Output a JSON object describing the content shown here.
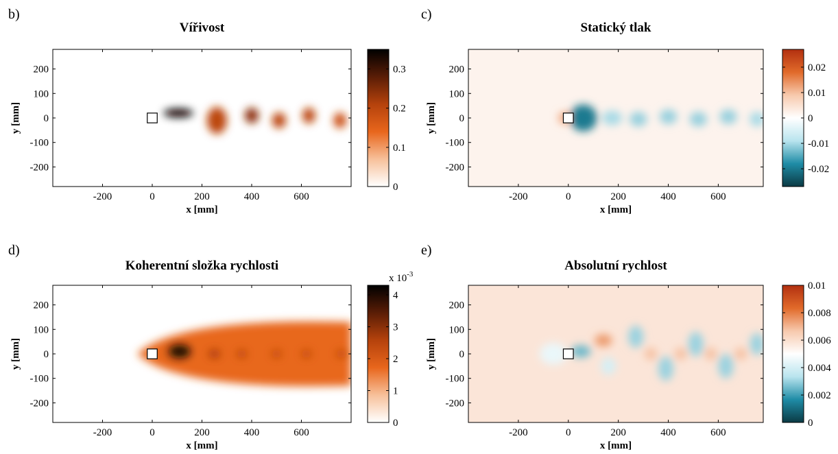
{
  "chart_data": [
    {
      "type": "heatmap",
      "panel_letter": "b)",
      "title": "Vířivost",
      "xlabel": "x [mm]",
      "ylabel": "y [mm]",
      "xlim": [
        -400,
        800
      ],
      "ylim": [
        -280,
        280
      ],
      "xticks": [
        -200,
        0,
        200,
        400,
        600
      ],
      "xtick_labels": [
        "-200",
        "0",
        "200",
        "400",
        "600"
      ],
      "yticks": [
        200,
        100,
        0,
        -100,
        -200
      ],
      "ytick_labels": [
        "200",
        "100",
        "0",
        "-100",
        "-200"
      ],
      "colorbar": {
        "range": [
          0,
          0.35
        ],
        "ticks": [
          0.3,
          0.2,
          0.1,
          0
        ],
        "tick_labels": [
          "0.3",
          "0.2",
          "0.1",
          "0"
        ],
        "exponent_label": "",
        "colormap": [
          "#ffffff",
          "#f7c09a",
          "#e8661c",
          "#b5420c",
          "#5a1d06",
          "#000000"
        ]
      },
      "field": "vorticity",
      "obstacle": {
        "x": 0,
        "y": 0,
        "size": 40
      },
      "features": [
        {
          "x": 105,
          "y": 20,
          "rx": 60,
          "ry": 18,
          "value": 0.34
        },
        {
          "x": 260,
          "y": -10,
          "rx": 40,
          "ry": 55,
          "value": 0.2
        },
        {
          "x": 400,
          "y": 10,
          "rx": 28,
          "ry": 32,
          "value": 0.24
        },
        {
          "x": 510,
          "y": -10,
          "rx": 28,
          "ry": 32,
          "value": 0.2
        },
        {
          "x": 630,
          "y": 10,
          "rx": 26,
          "ry": 32,
          "value": 0.2
        },
        {
          "x": 755,
          "y": -10,
          "rx": 26,
          "ry": 32,
          "value": 0.18
        }
      ]
    },
    {
      "type": "heatmap",
      "panel_letter": "c)",
      "title": "Statický tlak",
      "xlabel": "x [mm]",
      "ylabel": "y [mm]",
      "xlim": [
        -400,
        780
      ],
      "ylim": [
        -280,
        280
      ],
      "xticks": [
        -200,
        0,
        200,
        400,
        600
      ],
      "xtick_labels": [
        "-200",
        "0",
        "200",
        "400",
        "600"
      ],
      "yticks": [
        200,
        100,
        0,
        -100,
        -200
      ],
      "ytick_labels": [
        "200",
        "100",
        "0",
        "-100",
        "-200"
      ],
      "colorbar": {
        "range": [
          -0.027,
          0.027
        ],
        "ticks": [
          0.02,
          0.01,
          0,
          -0.01,
          -0.02
        ],
        "tick_labels": [
          "0.02",
          "0.01",
          "0",
          "-0.01",
          "-0.02"
        ],
        "exponent_label": "",
        "colormap": [
          "#0b3a44",
          "#1f8ca6",
          "#b9e4ee",
          "#ffffff",
          "#f7c9ad",
          "#e16a2a",
          "#b23010"
        ]
      },
      "field": "pressure",
      "obstacle": {
        "x": 0,
        "y": 0,
        "size": 40
      },
      "features": [
        {
          "x": -15,
          "y": 0,
          "rx": 25,
          "ry": 25,
          "value": 0.012
        },
        {
          "x": 60,
          "y": 0,
          "rx": 55,
          "ry": 55,
          "value": -0.02
        },
        {
          "x": 175,
          "y": 0,
          "rx": 40,
          "ry": 30,
          "value": -0.01
        },
        {
          "x": 280,
          "y": -5,
          "rx": 35,
          "ry": 30,
          "value": -0.011
        },
        {
          "x": 400,
          "y": 5,
          "rx": 35,
          "ry": 30,
          "value": -0.011
        },
        {
          "x": 520,
          "y": -5,
          "rx": 35,
          "ry": 30,
          "value": -0.011
        },
        {
          "x": 640,
          "y": 5,
          "rx": 35,
          "ry": 30,
          "value": -0.011
        },
        {
          "x": 755,
          "y": -5,
          "rx": 30,
          "ry": 30,
          "value": -0.01
        }
      ]
    },
    {
      "type": "heatmap",
      "panel_letter": "d)",
      "title": "Koherentní složka rychlosti",
      "xlabel": "x [mm]",
      "ylabel": "y [mm]",
      "xlim": [
        -400,
        800
      ],
      "ylim": [
        -280,
        280
      ],
      "xticks": [
        -200,
        0,
        200,
        400,
        600
      ],
      "xtick_labels": [
        "-200",
        "0",
        "200",
        "400",
        "600"
      ],
      "yticks": [
        200,
        100,
        0,
        -100,
        -200
      ],
      "ytick_labels": [
        "200",
        "100",
        "0",
        "-100",
        "-200"
      ],
      "colorbar": {
        "range": [
          0,
          4.3
        ],
        "ticks": [
          4,
          3,
          2,
          1,
          0
        ],
        "tick_labels": [
          "4",
          "3",
          "2",
          "1",
          "0"
        ],
        "exponent_label": "x 10",
        "exponent": "-3",
        "colormap": [
          "#ffffff",
          "#f7c09a",
          "#e8661c",
          "#b5420c",
          "#5a1d06",
          "#000000"
        ]
      },
      "field": "coherent_velocity",
      "obstacle": {
        "x": 0,
        "y": 0,
        "size": 40
      },
      "features": [
        {
          "x": 110,
          "y": 10,
          "rx": 45,
          "ry": 28,
          "value": 4.0
        },
        {
          "x": 250,
          "y": 0,
          "rx": 25,
          "ry": 20,
          "value": 2.6
        },
        {
          "x": 360,
          "y": 0,
          "rx": 22,
          "ry": 18,
          "value": 2.4
        },
        {
          "x": 500,
          "y": 0,
          "rx": 22,
          "ry": 18,
          "value": 2.3
        },
        {
          "x": 620,
          "y": 0,
          "rx": 22,
          "ry": 18,
          "value": 2.3
        },
        {
          "x": 760,
          "y": 0,
          "rx": 22,
          "ry": 18,
          "value": 2.3
        }
      ]
    },
    {
      "type": "heatmap",
      "panel_letter": "e)",
      "title": "Absolutní rychlost",
      "xlabel": "x [mm]",
      "ylabel": "y [mm]",
      "xlim": [
        -400,
        780
      ],
      "ylim": [
        -280,
        280
      ],
      "xticks": [
        -200,
        0,
        200,
        400,
        600
      ],
      "xtick_labels": [
        "-200",
        "0",
        "200",
        "400",
        "600"
      ],
      "yticks": [
        200,
        100,
        0,
        -100,
        -200
      ],
      "ytick_labels": [
        "200",
        "100",
        "0",
        "-100",
        "-200"
      ],
      "colorbar": {
        "range": [
          0,
          0.01
        ],
        "ticks": [
          0.01,
          0.008,
          0.006,
          0.004,
          0.002,
          0
        ],
        "tick_labels": [
          "0.01",
          "0.008",
          "0.006",
          "0.004",
          "0.002",
          "0"
        ],
        "exponent_label": "",
        "colormap": [
          "#0b3a44",
          "#1f8ca6",
          "#b9e4ee",
          "#ffffff",
          "#f7c9ad",
          "#e16a2a",
          "#b23010"
        ]
      },
      "field": "absolute_velocity",
      "obstacle": {
        "x": 0,
        "y": 0,
        "size": 40
      },
      "features": [
        {
          "x": -60,
          "y": 0,
          "rx": 55,
          "ry": 45,
          "value": 0.0045
        },
        {
          "x": 50,
          "y": 10,
          "rx": 40,
          "ry": 25,
          "value": 0.0025
        },
        {
          "x": 160,
          "y": -50,
          "rx": 30,
          "ry": 35,
          "value": 0.004
        },
        {
          "x": 270,
          "y": 70,
          "rx": 30,
          "ry": 45,
          "value": 0.003
        },
        {
          "x": 390,
          "y": -60,
          "rx": 30,
          "ry": 50,
          "value": 0.003
        },
        {
          "x": 510,
          "y": 40,
          "rx": 30,
          "ry": 50,
          "value": 0.003
        },
        {
          "x": 630,
          "y": -50,
          "rx": 30,
          "ry": 50,
          "value": 0.003
        },
        {
          "x": 755,
          "y": 40,
          "rx": 28,
          "ry": 45,
          "value": 0.003
        },
        {
          "x": 140,
          "y": 55,
          "rx": 35,
          "ry": 25,
          "value": 0.0075
        },
        {
          "x": 330,
          "y": 0,
          "rx": 25,
          "ry": 25,
          "value": 0.0068
        },
        {
          "x": 450,
          "y": 0,
          "rx": 25,
          "ry": 25,
          "value": 0.0068
        },
        {
          "x": 570,
          "y": 0,
          "rx": 25,
          "ry": 25,
          "value": 0.0068
        },
        {
          "x": 690,
          "y": 0,
          "rx": 25,
          "ry": 25,
          "value": 0.0068
        }
      ]
    }
  ]
}
